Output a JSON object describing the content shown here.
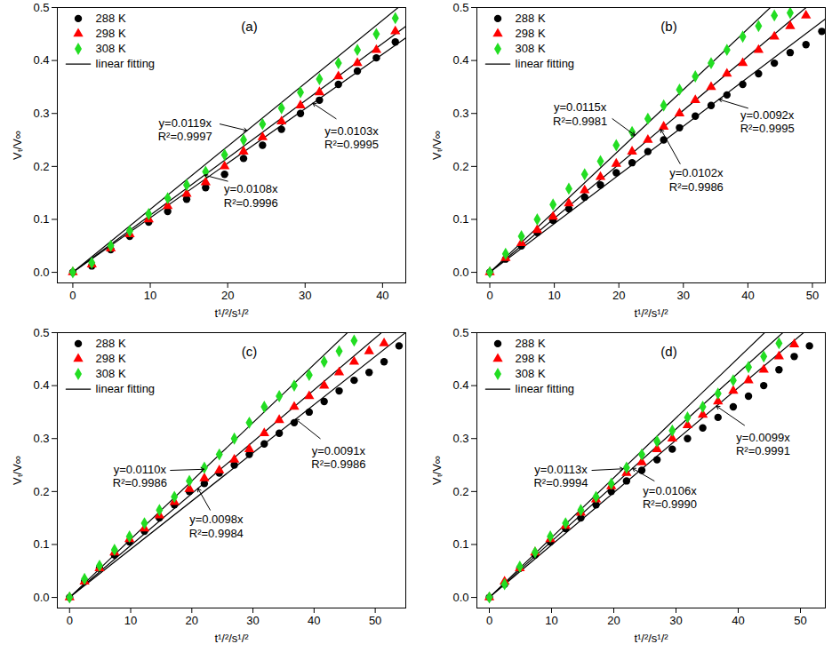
{
  "chart_data": [
    {
      "type": "scatter",
      "title": "(a)",
      "x_label": "t¹/²/s¹/²",
      "y_label": "Vₜ/V∞",
      "xlim": [
        -2,
        43
      ],
      "xticks": [
        0,
        10,
        20,
        30,
        40
      ],
      "ylim": [
        -0.02,
        0.5
      ],
      "yticks": [
        {
          "value": 0,
          "label": "0.0"
        },
        0.1,
        0.2,
        0.3,
        0.4,
        0.5
      ],
      "legend": "top-left",
      "fit_label": "linear fitting",
      "x": [
        0,
        2.45,
        4.9,
        7.35,
        9.8,
        12.25,
        14.7,
        17.15,
        19.6,
        22.05,
        24.5,
        26.95,
        29.4,
        31.85,
        34.3,
        36.75,
        39.2,
        41.65
      ],
      "series": [
        {
          "name": "288 K",
          "color": "#000000",
          "marker": "circle",
          "values": [
            0,
            0.012,
            0.043,
            0.068,
            0.095,
            0.115,
            0.138,
            0.16,
            0.185,
            0.215,
            0.24,
            0.27,
            0.3,
            0.325,
            0.355,
            0.38,
            0.405,
            0.435
          ],
          "fit": {
            "slope": 0.0103,
            "label": "y=0.0103x",
            "r2_label": "R²=0.9995"
          }
        },
        {
          "name": "298 K",
          "color": "#ff0000",
          "marker": "triangle",
          "values": [
            0,
            0.015,
            0.045,
            0.072,
            0.1,
            0.125,
            0.148,
            0.17,
            0.2,
            0.228,
            0.255,
            0.285,
            0.315,
            0.34,
            0.37,
            0.395,
            0.42,
            0.455
          ],
          "fit": {
            "slope": 0.0108,
            "label": "y=0.0108x",
            "r2_label": "R²=0.9996"
          }
        },
        {
          "name": "308 K",
          "color": "#22dd22",
          "marker": "diamond",
          "values": [
            0,
            0.018,
            0.05,
            0.078,
            0.11,
            0.14,
            0.165,
            0.19,
            0.222,
            0.25,
            0.28,
            0.31,
            0.34,
            0.365,
            0.395,
            0.42,
            0.45,
            0.48
          ],
          "fit": {
            "slope": 0.0119,
            "label": "y=0.0119x",
            "r2_label": "R²=0.9997"
          }
        }
      ]
    },
    {
      "type": "scatter",
      "title": "(b)",
      "x_label": "t¹/²/s¹/²",
      "y_label": "Vₜ/V∞",
      "xlim": [
        -2,
        52
      ],
      "xticks": [
        0,
        10,
        20,
        30,
        40,
        50
      ],
      "ylim": [
        -0.02,
        0.5
      ],
      "yticks": [
        {
          "value": 0,
          "label": "0.0"
        },
        0.1,
        0.2,
        0.3,
        0.4,
        0.5
      ],
      "legend": "top-left",
      "fit_label": "linear fitting",
      "x": [
        0,
        2.45,
        4.9,
        7.35,
        9.8,
        12.25,
        14.7,
        17.15,
        19.6,
        22.05,
        24.5,
        26.95,
        29.4,
        31.85,
        34.3,
        36.75,
        39.2,
        41.65,
        44.1,
        46.55,
        49,
        51.45
      ],
      "series": [
        {
          "name": "288 K",
          "color": "#000000",
          "marker": "circle",
          "values": [
            0,
            0.025,
            0.05,
            0.075,
            0.098,
            0.12,
            0.142,
            0.165,
            0.188,
            0.207,
            0.228,
            0.25,
            0.273,
            0.295,
            0.315,
            0.335,
            0.355,
            0.375,
            0.395,
            0.415,
            0.43,
            0.455
          ],
          "fit": {
            "slope": 0.0092,
            "label": "y=0.0092x",
            "r2_label": "R²=0.9995"
          }
        },
        {
          "name": "298 K",
          "color": "#ff0000",
          "marker": "triangle",
          "values": [
            0,
            0.027,
            0.055,
            0.08,
            0.105,
            0.13,
            0.155,
            0.18,
            0.205,
            0.228,
            0.25,
            0.275,
            0.3,
            0.325,
            0.35,
            0.375,
            0.395,
            0.42,
            0.445,
            0.465,
            0.485,
            null
          ],
          "fit": {
            "slope": 0.0102,
            "label": "y=0.0102x",
            "r2_label": "R²=0.9986"
          }
        },
        {
          "name": "308 K",
          "color": "#22dd22",
          "marker": "diamond",
          "values": [
            0,
            0.035,
            0.068,
            0.1,
            0.128,
            0.158,
            0.185,
            0.21,
            0.24,
            0.265,
            0.29,
            0.315,
            0.345,
            0.37,
            0.395,
            0.42,
            0.445,
            0.465,
            0.485,
            0.49,
            null,
            null
          ],
          "fit": {
            "slope": 0.0115,
            "label": "y=0.0115x",
            "r2_label": "R²=0.9981"
          }
        }
      ]
    },
    {
      "type": "scatter",
      "title": "(c)",
      "x_label": "t¹/²/s¹/²",
      "y_label": "Vₜ/V∞",
      "xlim": [
        -2,
        55
      ],
      "xticks": [
        0,
        10,
        20,
        30,
        40,
        50
      ],
      "ylim": [
        -0.02,
        0.5
      ],
      "yticks": [
        {
          "value": 0,
          "label": "0.0"
        },
        0.1,
        0.2,
        0.3,
        0.4,
        0.5
      ],
      "legend": "top-left",
      "fit_label": "linear fitting",
      "x": [
        0,
        2.45,
        4.9,
        7.35,
        9.8,
        12.25,
        14.7,
        17.15,
        19.6,
        22.05,
        24.5,
        26.95,
        29.4,
        31.85,
        34.3,
        36.75,
        39.2,
        41.65,
        44.1,
        46.55,
        49,
        51.45,
        53.9
      ],
      "series": [
        {
          "name": "288 K",
          "color": "#000000",
          "marker": "circle",
          "values": [
            0,
            0.03,
            0.055,
            0.08,
            0.105,
            0.125,
            0.15,
            0.175,
            0.2,
            0.215,
            0.235,
            0.25,
            0.27,
            0.29,
            0.31,
            0.33,
            0.35,
            0.37,
            0.39,
            0.41,
            0.425,
            0.445,
            0.475
          ],
          "fit": {
            "slope": 0.0091,
            "label": "y=0.0091x",
            "r2_label": "R²=0.9986"
          }
        },
        {
          "name": "298 K",
          "color": "#ff0000",
          "marker": "triangle",
          "values": [
            0,
            0.03,
            0.055,
            0.085,
            0.11,
            0.13,
            0.155,
            0.18,
            0.205,
            0.225,
            0.24,
            0.26,
            0.28,
            0.31,
            0.335,
            0.36,
            0.38,
            0.4,
            0.425,
            0.445,
            0.465,
            0.48,
            null
          ],
          "fit": {
            "slope": 0.0098,
            "label": "y=0.0098x",
            "r2_label": "R²=0.9984"
          }
        },
        {
          "name": "308 K",
          "color": "#22dd22",
          "marker": "diamond",
          "values": [
            0,
            0.035,
            0.06,
            0.09,
            0.115,
            0.14,
            0.165,
            0.19,
            0.22,
            0.245,
            0.27,
            0.3,
            0.33,
            0.36,
            0.38,
            0.4,
            0.42,
            0.445,
            0.465,
            0.485,
            null,
            null,
            null
          ],
          "fit": {
            "slope": 0.011,
            "label": "y=0.0110x",
            "r2_label": "R²=0.9986"
          }
        }
      ]
    },
    {
      "type": "scatter",
      "title": "(d)",
      "x_label": "t¹/²/s¹/²",
      "y_label": "Vₜ/V∞",
      "xlim": [
        -2,
        54
      ],
      "xticks": [
        0,
        10,
        20,
        30,
        40,
        50
      ],
      "ylim": [
        -0.02,
        0.5
      ],
      "yticks": [
        {
          "value": 0,
          "label": "0.0"
        },
        0.1,
        0.2,
        0.3,
        0.4,
        0.5
      ],
      "legend": "top-left",
      "fit_label": "linear fitting",
      "x": [
        0,
        2.45,
        4.9,
        7.35,
        9.8,
        12.25,
        14.7,
        17.15,
        19.6,
        22.05,
        24.5,
        26.95,
        29.4,
        31.85,
        34.3,
        36.75,
        39.2,
        41.65,
        44.1,
        46.55,
        49,
        51.45
      ],
      "series": [
        {
          "name": "288 K",
          "color": "#000000",
          "marker": "circle",
          "values": [
            0,
            0.025,
            0.055,
            0.08,
            0.105,
            0.13,
            0.15,
            0.175,
            0.2,
            0.22,
            0.24,
            0.26,
            0.28,
            0.3,
            0.32,
            0.34,
            0.36,
            0.38,
            0.4,
            0.43,
            0.455,
            0.475
          ],
          "fit": {
            "slope": 0.0099,
            "label": "y=0.0099x",
            "r2_label": "R²=0.9991"
          }
        },
        {
          "name": "298 K",
          "color": "#ff0000",
          "marker": "triangle",
          "values": [
            0,
            0.03,
            0.055,
            0.085,
            0.11,
            0.135,
            0.16,
            0.185,
            0.21,
            0.235,
            0.255,
            0.28,
            0.3,
            0.325,
            0.345,
            0.37,
            0.39,
            0.41,
            0.43,
            0.455,
            0.478,
            null
          ],
          "fit": {
            "slope": 0.0106,
            "label": "y=0.0106x",
            "r2_label": "R²=0.9990"
          }
        },
        {
          "name": "308 K",
          "color": "#22dd22",
          "marker": "diamond",
          "values": [
            0,
            0.025,
            0.058,
            0.085,
            0.115,
            0.14,
            0.165,
            0.19,
            0.215,
            0.245,
            0.27,
            0.295,
            0.315,
            0.34,
            0.36,
            0.385,
            0.41,
            0.435,
            0.455,
            0.48,
            null,
            null
          ],
          "fit": {
            "slope": 0.0113,
            "label": "y=0.0113x",
            "r2_label": "R²=0.9994"
          }
        }
      ]
    }
  ]
}
